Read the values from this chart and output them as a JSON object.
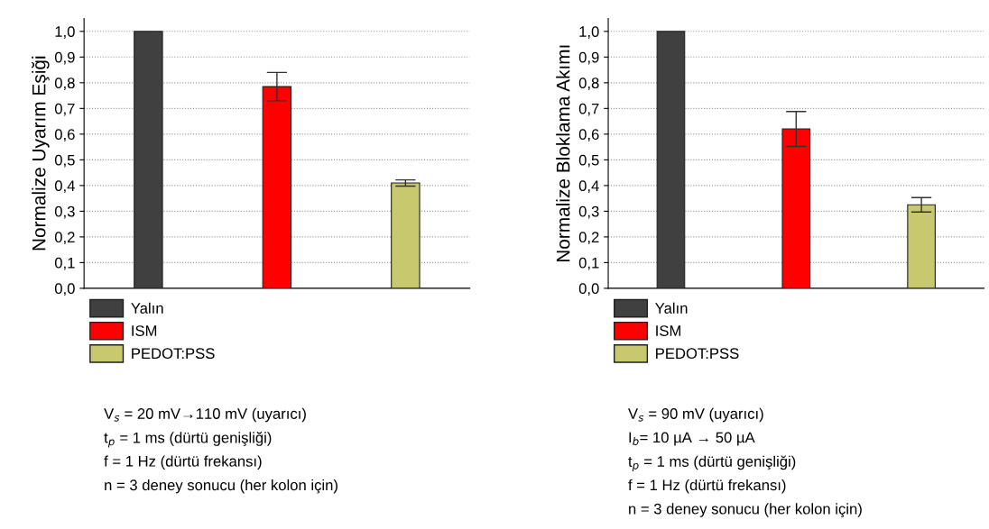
{
  "chart_data": [
    {
      "type": "bar",
      "ylabel": "Normalize Uyarım Eşiği",
      "categories": [
        null,
        null,
        null
      ],
      "series": [
        {
          "name": "Yalın",
          "color": "#404040",
          "values": [
            1.0,
            null,
            null
          ]
        },
        {
          "name": "ISM",
          "color": "#ff0000",
          "values": [
            null,
            0.785,
            null
          ],
          "errors": [
            null,
            0.055,
            null
          ]
        },
        {
          "name": "PEDOT:PSS",
          "color": "#c8c86e",
          "values": [
            null,
            null,
            0.41
          ],
          "errors": [
            null,
            null,
            0.012
          ]
        }
      ],
      "ylim": [
        0,
        1.05
      ],
      "yticks": [
        {
          "value": 0,
          "label": "0,0"
        },
        {
          "value": 0.1,
          "label": "0,1"
        },
        {
          "value": 0.2,
          "label": "0,2"
        },
        {
          "value": 0.3,
          "label": "0,3"
        },
        {
          "value": 0.4,
          "label": "0,4"
        },
        {
          "value": 0.5,
          "label": "0,5"
        },
        {
          "value": 0.6,
          "label": "0,6"
        },
        {
          "value": 0.7,
          "label": "0,7"
        },
        {
          "value": 0.8,
          "label": "0,8"
        },
        {
          "value": 0.9,
          "label": "0,9"
        },
        {
          "value": 1.0,
          "label": "1,0"
        }
      ],
      "grid": "y",
      "legend": "bottom left",
      "tick_labels": "y",
      "annotations": [
        "V$_{s}$ = 20 mV→110 mV (uyarıcı)",
        "t$_{p}$ = 1 ms (dürtü genişliği)",
        "f = 1 Hz (dürtü frekansı)",
        "n = 3 deney sonucu (her kolon için)"
      ]
    },
    {
      "type": "bar",
      "ylabel": "Normalize Bloklama Akımı",
      "categories": [
        null,
        null,
        null
      ],
      "series": [
        {
          "name": "Yalın",
          "color": "#404040",
          "values": [
            1.0,
            null,
            null
          ]
        },
        {
          "name": "ISM",
          "color": "#ff0000",
          "values": [
            null,
            0.62,
            null
          ],
          "errors": [
            null,
            0.068,
            null
          ]
        },
        {
          "name": "PEDOT:PSS",
          "color": "#c8c86e",
          "values": [
            null,
            null,
            0.325
          ],
          "errors": [
            null,
            null,
            0.028
          ]
        }
      ],
      "ylim": [
        0,
        1.05
      ],
      "yticks": [
        {
          "value": 0,
          "label": "0,0"
        },
        {
          "value": 0.1,
          "label": "0,1"
        },
        {
          "value": 0.2,
          "label": "0,2"
        },
        {
          "value": 0.3,
          "label": "0,3"
        },
        {
          "value": 0.4,
          "label": "0,4"
        },
        {
          "value": 0.5,
          "label": "0,5"
        },
        {
          "value": 0.6,
          "label": "0,6"
        },
        {
          "value": 0.7,
          "label": "0,7"
        },
        {
          "value": 0.8,
          "label": "0,8"
        },
        {
          "value": 0.9,
          "label": "0,9"
        },
        {
          "value": 1.0,
          "label": "1,0"
        }
      ],
      "grid": "y",
      "legend": "bottom left",
      "tick_labels": "y",
      "annotations": [
        "V$_{s}$ = 90 mV (uyarıcı)",
        "I$_{b}$= 10 µA → 50 µA",
        "t$_{p}$ = 1 ms (dürtü genişliği)",
        "f = 1 Hz (dürtü frekansı)",
        "n = 3 deney sonucu (her kolon için)"
      ]
    }
  ]
}
